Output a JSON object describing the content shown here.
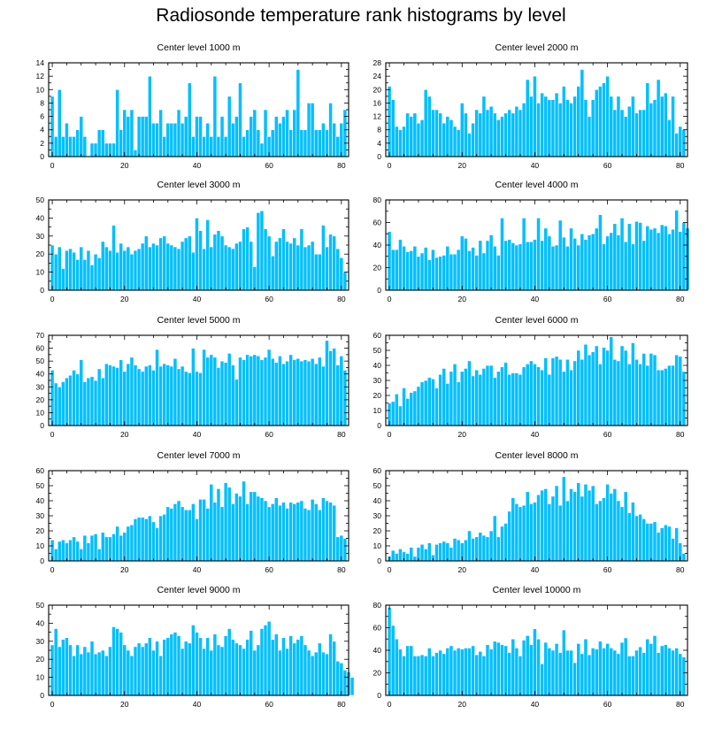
{
  "figure": {
    "title": "Radiosonde temperature rank histograms by level"
  },
  "colors": {
    "bar": "#00bfff",
    "bar_edge": "#ffffff",
    "axis": "#000000"
  },
  "chart_data": [
    {
      "type": "bar",
      "title": "Center level 1000 m",
      "xlim": [
        -1,
        82
      ],
      "ylim": [
        0,
        14
      ],
      "xticks": [
        0,
        20,
        40,
        60,
        80
      ],
      "yticks": [
        0,
        2,
        4,
        6,
        8,
        10,
        12,
        14
      ],
      "values": [
        9,
        3,
        10,
        3,
        5,
        3,
        3,
        4,
        6,
        3,
        0,
        2,
        2,
        4,
        4,
        2,
        2,
        2,
        10,
        4,
        7,
        6,
        7,
        1,
        6,
        6,
        6,
        12,
        5,
        5,
        7,
        3,
        5,
        5,
        5,
        7,
        5,
        6,
        11,
        3,
        6,
        6,
        3,
        5,
        3,
        12,
        3,
        6,
        3,
        9,
        5,
        6,
        11,
        3,
        4,
        6,
        7,
        4,
        2,
        7,
        3,
        4,
        6,
        5,
        6,
        7,
        4,
        7,
        13,
        4,
        4,
        8,
        8,
        4,
        4,
        5,
        4,
        8,
        5,
        3,
        5,
        7
      ]
    },
    {
      "type": "bar",
      "title": "Center level 2000 m",
      "xlim": [
        -1,
        82
      ],
      "ylim": [
        0,
        28
      ],
      "xticks": [
        0,
        20,
        40,
        60,
        80
      ],
      "yticks": [
        0,
        4,
        8,
        12,
        16,
        20,
        24,
        28
      ],
      "values": [
        21,
        17,
        9,
        8,
        9,
        13,
        12,
        13,
        10,
        11,
        20,
        18,
        14,
        14,
        13,
        10,
        12,
        11,
        9,
        8,
        16,
        13,
        7,
        10,
        14,
        13,
        18,
        14,
        15,
        13,
        11,
        12,
        13,
        14,
        13,
        15,
        14,
        16,
        23,
        18,
        24,
        16,
        19,
        18,
        17,
        17,
        19,
        16,
        21,
        17,
        16,
        18,
        21,
        26,
        17,
        12,
        17,
        20,
        21,
        22,
        24,
        18,
        14,
        18,
        14,
        12,
        15,
        18,
        13,
        14,
        14,
        22,
        16,
        17,
        23,
        18,
        19,
        11,
        18,
        7,
        9,
        8
      ]
    },
    {
      "type": "bar",
      "title": "Center level 3000 m",
      "xlim": [
        -1,
        82
      ],
      "ylim": [
        0,
        50
      ],
      "xticks": [
        0,
        20,
        40,
        60,
        80
      ],
      "yticks": [
        0,
        10,
        20,
        30,
        40,
        50
      ],
      "values": [
        25,
        20,
        24,
        12,
        22,
        23,
        21,
        17,
        24,
        17,
        22,
        14,
        20,
        18,
        27,
        24,
        22,
        36,
        21,
        26,
        22,
        24,
        20,
        22,
        23,
        26,
        30,
        24,
        26,
        25,
        29,
        30,
        26,
        25,
        24,
        23,
        27,
        29,
        30,
        21,
        40,
        33,
        23,
        39,
        24,
        31,
        33,
        30,
        25,
        24,
        23,
        26,
        27,
        34,
        35,
        27,
        13,
        43,
        44,
        34,
        30,
        19,
        27,
        29,
        34,
        27,
        26,
        29,
        25,
        34,
        24,
        25,
        27,
        20,
        20,
        36,
        24,
        31,
        30,
        23,
        18,
        10
      ]
    },
    {
      "type": "bar",
      "title": "Center level 4000 m",
      "xlim": [
        -1,
        82
      ],
      "ylim": [
        0,
        80
      ],
      "xticks": [
        0,
        20,
        40,
        60,
        80
      ],
      "yticks": [
        0,
        20,
        40,
        60,
        80
      ],
      "values": [
        52,
        36,
        36,
        45,
        39,
        34,
        35,
        39,
        30,
        33,
        38,
        27,
        36,
        29,
        30,
        31,
        39,
        32,
        32,
        36,
        48,
        46,
        35,
        38,
        31,
        44,
        33,
        44,
        49,
        39,
        31,
        64,
        44,
        45,
        42,
        40,
        41,
        64,
        43,
        43,
        45,
        64,
        44,
        55,
        48,
        39,
        40,
        62,
        47,
        39,
        55,
        46,
        40,
        50,
        45,
        49,
        50,
        55,
        67,
        41,
        48,
        51,
        59,
        49,
        64,
        43,
        59,
        41,
        61,
        60,
        44,
        57,
        54,
        55,
        51,
        58,
        57,
        50,
        54,
        71,
        52,
        60,
        55
      ]
    },
    {
      "type": "bar",
      "title": "Center level 5000 m",
      "xlim": [
        -1,
        82
      ],
      "ylim": [
        0,
        70
      ],
      "xticks": [
        0,
        20,
        40,
        60,
        80
      ],
      "yticks": [
        0,
        10,
        20,
        30,
        40,
        50,
        60,
        70
      ],
      "values": [
        43,
        33,
        30,
        34,
        37,
        39,
        43,
        40,
        51,
        34,
        37,
        38,
        35,
        44,
        37,
        48,
        47,
        46,
        45,
        51,
        42,
        48,
        53,
        47,
        44,
        42,
        46,
        47,
        43,
        59,
        46,
        48,
        47,
        46,
        52,
        44,
        46,
        42,
        41,
        60,
        42,
        41,
        59,
        53,
        55,
        53,
        45,
        50,
        49,
        56,
        47,
        36,
        53,
        51,
        55,
        54,
        55,
        54,
        51,
        53,
        59,
        52,
        49,
        54,
        48,
        50,
        55,
        51,
        52,
        50,
        51,
        50,
        52,
        48,
        53,
        46,
        66,
        58,
        60,
        47,
        54,
        43
      ]
    },
    {
      "type": "bar",
      "title": "Center level 6000 m",
      "xlim": [
        -1,
        82
      ],
      "ylim": [
        0,
        60
      ],
      "xticks": [
        0,
        20,
        40,
        60,
        80
      ],
      "yticks": [
        0,
        10,
        20,
        30,
        40,
        50,
        60
      ],
      "values": [
        15,
        16,
        21,
        13,
        25,
        18,
        22,
        23,
        26,
        29,
        30,
        32,
        31,
        25,
        34,
        38,
        28,
        36,
        41,
        29,
        36,
        38,
        43,
        33,
        37,
        34,
        38,
        40,
        40,
        32,
        36,
        39,
        42,
        34,
        35,
        35,
        34,
        39,
        41,
        43,
        41,
        39,
        37,
        45,
        34,
        45,
        46,
        44,
        36,
        44,
        37,
        43,
        50,
        44,
        54,
        47,
        49,
        53,
        41,
        52,
        50,
        59,
        44,
        43,
        53,
        50,
        41,
        55,
        44,
        41,
        48,
        40,
        48,
        47,
        37,
        37,
        38,
        40,
        40,
        47,
        46,
        36
      ]
    },
    {
      "type": "bar",
      "title": "Center level 7000 m",
      "xlim": [
        -1,
        82
      ],
      "ylim": [
        0,
        60
      ],
      "xticks": [
        0,
        20,
        40,
        60,
        80
      ],
      "yticks": [
        0,
        10,
        20,
        30,
        40,
        50,
        60
      ],
      "values": [
        14,
        8,
        13,
        14,
        12,
        14,
        16,
        13,
        8,
        17,
        12,
        17,
        18,
        8,
        19,
        16,
        16,
        18,
        23,
        17,
        19,
        23,
        24,
        28,
        29,
        29,
        28,
        30,
        26,
        22,
        30,
        31,
        36,
        35,
        38,
        40,
        36,
        34,
        34,
        38,
        28,
        41,
        41,
        35,
        51,
        39,
        48,
        36,
        52,
        49,
        38,
        45,
        43,
        53,
        38,
        46,
        46,
        43,
        42,
        40,
        36,
        38,
        42,
        37,
        39,
        35,
        39,
        38,
        39,
        40,
        35,
        34,
        41,
        38,
        34,
        42,
        40,
        39,
        37,
        16,
        17,
        15
      ]
    },
    {
      "type": "bar",
      "title": "Center level 8000 m",
      "xlim": [
        -1,
        82
      ],
      "ylim": [
        0,
        60
      ],
      "xticks": [
        0,
        20,
        40,
        60,
        80
      ],
      "yticks": [
        0,
        10,
        20,
        30,
        40,
        50,
        60
      ],
      "values": [
        3,
        7,
        5,
        8,
        6,
        5,
        9,
        3,
        9,
        11,
        8,
        12,
        4,
        11,
        12,
        13,
        12,
        9,
        15,
        14,
        12,
        14,
        20,
        15,
        16,
        19,
        17,
        16,
        20,
        30,
        16,
        23,
        25,
        33,
        42,
        38,
        36,
        37,
        46,
        38,
        39,
        44,
        47,
        48,
        38,
        43,
        50,
        37,
        56,
        40,
        48,
        46,
        52,
        43,
        51,
        47,
        50,
        38,
        40,
        42,
        51,
        45,
        48,
        40,
        36,
        46,
        32,
        39,
        30,
        31,
        28,
        25,
        25,
        26,
        19,
        22,
        24,
        23,
        15,
        22,
        12,
        5
      ]
    },
    {
      "type": "bar",
      "title": "Center level 9000 m",
      "xlim": [
        -1,
        82
      ],
      "ylim": [
        0,
        50
      ],
      "xticks": [
        0,
        20,
        40,
        60,
        80
      ],
      "yticks": [
        0,
        10,
        20,
        30,
        40,
        50
      ],
      "values": [
        28,
        37,
        27,
        31,
        32,
        28,
        22,
        28,
        23,
        27,
        24,
        30,
        23,
        24,
        25,
        22,
        27,
        38,
        37,
        35,
        28,
        25,
        22,
        27,
        29,
        27,
        29,
        32,
        25,
        30,
        22,
        31,
        32,
        34,
        35,
        33,
        26,
        30,
        29,
        39,
        35,
        32,
        26,
        32,
        25,
        34,
        28,
        27,
        33,
        37,
        31,
        29,
        28,
        26,
        31,
        36,
        25,
        28,
        37,
        39,
        41,
        31,
        34,
        25,
        32,
        26,
        33,
        29,
        31,
        33,
        28,
        25,
        22,
        24,
        29,
        24,
        23,
        34,
        30,
        19,
        18,
        14,
        13,
        10
      ]
    },
    {
      "type": "bar",
      "title": "Center level 10000 m",
      "xlim": [
        -1,
        82
      ],
      "ylim": [
        0,
        80
      ],
      "xticks": [
        0,
        20,
        40,
        60,
        80
      ],
      "yticks": [
        0,
        20,
        40,
        60,
        80
      ],
      "values": [
        78,
        62,
        50,
        41,
        35,
        44,
        44,
        35,
        35,
        36,
        35,
        42,
        35,
        38,
        40,
        37,
        42,
        44,
        40,
        42,
        41,
        42,
        42,
        44,
        36,
        39,
        35,
        45,
        41,
        48,
        47,
        45,
        44,
        38,
        50,
        42,
        35,
        49,
        53,
        45,
        59,
        50,
        28,
        47,
        42,
        40,
        46,
        38,
        58,
        40,
        40,
        29,
        46,
        37,
        50,
        36,
        42,
        41,
        48,
        42,
        46,
        42,
        40,
        37,
        47,
        51,
        35,
        35,
        40,
        43,
        38,
        50,
        46,
        53,
        38,
        44,
        45,
        42,
        40,
        42,
        37,
        34
      ]
    }
  ]
}
